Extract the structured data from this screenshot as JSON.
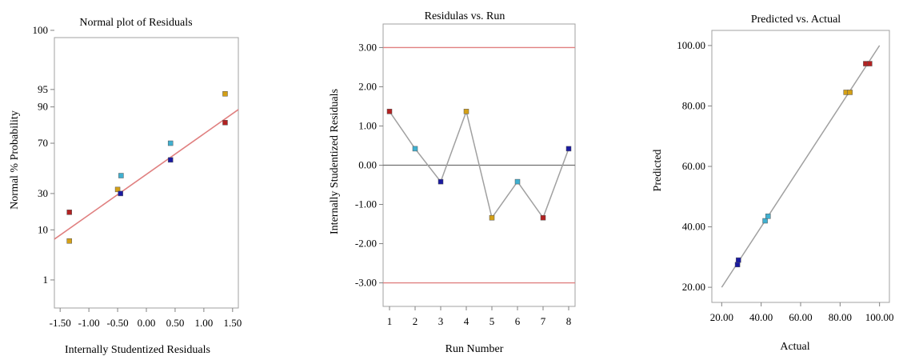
{
  "chart_data": [
    {
      "id": "normal",
      "type": "scatter",
      "title": "Normal plot of Residuals",
      "xlabel": "Internally Studentized Residuals",
      "ylabel": "Normal % Probability",
      "xlim": [
        -1.6,
        1.6
      ],
      "xticks": [
        -1.5,
        -1.0,
        -0.5,
        0.0,
        0.5,
        1.0,
        1.5
      ],
      "xtick_labels": [
        "-1.50",
        "-1.00",
        "-0.50",
        "0.00",
        "0.50",
        "1.00",
        "1.50"
      ],
      "y_scale": "normal-probability",
      "yticks": [
        1,
        10,
        30,
        70,
        90,
        95,
        100
      ],
      "ytick_labels": [
        "1",
        "10",
        "30",
        "70",
        "90",
        "95",
        "100"
      ],
      "grid": false,
      "points": [
        {
          "x": -1.34,
          "y": 6.5,
          "color": "#d4a017"
        },
        {
          "x": -1.34,
          "y": 18,
          "color": "#b22222"
        },
        {
          "x": -0.5,
          "y": 33,
          "color": "#d4a017"
        },
        {
          "x": -0.45,
          "y": 30,
          "color": "#1a1aa0"
        },
        {
          "x": -0.44,
          "y": 44,
          "color": "#40b0d0"
        },
        {
          "x": 0.42,
          "y": 57,
          "color": "#1a1aa0"
        },
        {
          "x": 0.42,
          "y": 70,
          "color": "#40b0d0"
        },
        {
          "x": 1.37,
          "y": 83,
          "color": "#b22222"
        },
        {
          "x": 1.37,
          "y": 94,
          "color": "#d4a017"
        }
      ],
      "fit_line": {
        "x": [
          -1.6,
          1.6
        ],
        "y": [
          7,
          89
        ],
        "color": "#e08080"
      }
    },
    {
      "id": "run",
      "type": "line",
      "title": "Residulas vs. Run",
      "xlabel": "Run Number",
      "ylabel": "Internally Studentized Residuals",
      "xlim": [
        0.75,
        8.25
      ],
      "ylim": [
        -3.6,
        3.6
      ],
      "xticks": [
        1,
        2,
        3,
        4,
        5,
        6,
        7,
        8
      ],
      "xtick_labels": [
        "1",
        "2",
        "3",
        "4",
        "5",
        "6",
        "7",
        "8"
      ],
      "yticks": [
        3,
        2,
        1,
        0,
        -1,
        -2,
        -3
      ],
      "ytick_labels": [
        "3.00",
        "2.00",
        "1.00",
        "0.00",
        "-1.00",
        "-2.00",
        "-3.00"
      ],
      "grid": false,
      "x": [
        1,
        2,
        3,
        4,
        5,
        6,
        7,
        8
      ],
      "y": [
        1.37,
        0.42,
        -0.42,
        1.37,
        -1.34,
        -0.42,
        -1.34,
        0.42
      ],
      "point_colors": [
        "#b22222",
        "#40b0d0",
        "#1a1aa0",
        "#d4a017",
        "#d4a017",
        "#40b0d0",
        "#b22222",
        "#1a1aa0"
      ],
      "limit_lines": [
        3.0,
        -3.0
      ],
      "limit_color": "#e08080",
      "zero_line": 0.0
    },
    {
      "id": "pred",
      "type": "scatter",
      "title": "Predicted vs. Actual",
      "xlabel": "Actual",
      "ylabel": "Predicted",
      "xlim": [
        15,
        105
      ],
      "ylim": [
        15,
        105
      ],
      "xticks": [
        20,
        40,
        60,
        80,
        100
      ],
      "xtick_labels": [
        "20.00",
        "40.00",
        "60.00",
        "80.00",
        "100.00"
      ],
      "yticks": [
        20,
        40,
        60,
        80,
        100
      ],
      "ytick_labels": [
        "20.00",
        "40.00",
        "60.00",
        "80.00",
        "100.00"
      ],
      "grid": false,
      "points": [
        {
          "x": 28,
          "y": 27.5,
          "color": "#1a1aa0"
        },
        {
          "x": 28.5,
          "y": 29,
          "color": "#1a1aa0"
        },
        {
          "x": 42,
          "y": 42,
          "color": "#40b0d0"
        },
        {
          "x": 43.5,
          "y": 43.5,
          "color": "#40b0d0"
        },
        {
          "x": 83,
          "y": 84.5,
          "color": "#d4a017"
        },
        {
          "x": 85,
          "y": 84.5,
          "color": "#d4a017"
        },
        {
          "x": 93,
          "y": 94,
          "color": "#b22222"
        },
        {
          "x": 95,
          "y": 94,
          "color": "#b22222"
        }
      ],
      "fit_line": {
        "x": [
          20,
          100
        ],
        "y": [
          20,
          100
        ],
        "color": "#a0a0a0"
      }
    }
  ]
}
